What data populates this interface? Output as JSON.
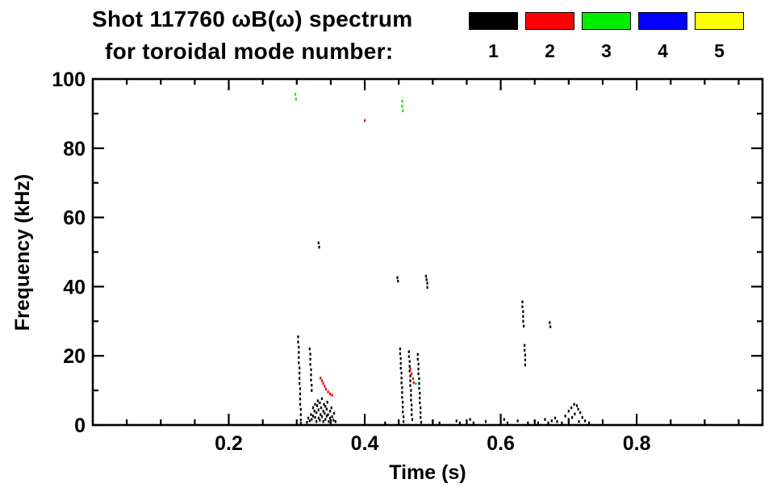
{
  "title": {
    "line1": "Shot 117760 ωB(ω) spectrum",
    "line2": "for toroidal mode number:"
  },
  "legend": {
    "position": "top-right",
    "entries": [
      {
        "label": "1",
        "color": "#000000"
      },
      {
        "label": "2",
        "color": "#ff0000"
      },
      {
        "label": "3",
        "color": "#00ee00"
      },
      {
        "label": "4",
        "color": "#0000ff"
      },
      {
        "label": "5",
        "color": "#ffff00"
      }
    ]
  },
  "chart_data": {
    "type": "scatter",
    "title": "Shot 117760 ωB(ω) spectrum for toroidal mode number:",
    "xlabel": "Time (s)",
    "ylabel": "Frequency (kHz)",
    "xlim": [
      0,
      0.985
    ],
    "ylim": [
      0,
      100
    ],
    "xticks": [
      0.2,
      0.4,
      0.6,
      0.8
    ],
    "yticks": [
      0,
      20,
      40,
      60,
      80,
      100
    ],
    "xminor_step": 0.05,
    "yminor_step": 10,
    "grid": false,
    "background": "#ffffff",
    "series": [
      {
        "name": "mode 1",
        "color": "#000000",
        "points": [
          [
            0.302,
            25.5
          ],
          [
            0.302,
            24
          ],
          [
            0.303,
            22.5
          ],
          [
            0.303,
            21
          ],
          [
            0.303,
            19.5
          ],
          [
            0.303,
            18
          ],
          [
            0.304,
            16.5
          ],
          [
            0.304,
            15
          ],
          [
            0.304,
            13.5
          ],
          [
            0.304,
            12
          ],
          [
            0.305,
            10.5
          ],
          [
            0.305,
            9
          ],
          [
            0.305,
            7.5
          ],
          [
            0.305,
            6
          ],
          [
            0.306,
            4.5
          ],
          [
            0.306,
            3
          ],
          [
            0.306,
            1.5
          ],
          [
            0.306,
            0.5
          ],
          [
            0.319,
            22
          ],
          [
            0.32,
            20.5
          ],
          [
            0.32,
            19
          ],
          [
            0.32,
            17.5
          ],
          [
            0.321,
            16
          ],
          [
            0.321,
            14.5
          ],
          [
            0.321,
            13
          ],
          [
            0.322,
            11.5
          ],
          [
            0.322,
            10
          ],
          [
            0.315,
            0.8
          ],
          [
            0.317,
            2
          ],
          [
            0.319,
            1.2
          ],
          [
            0.321,
            3
          ],
          [
            0.322,
            1.6
          ],
          [
            0.324,
            2.6
          ],
          [
            0.324,
            5
          ],
          [
            0.326,
            4
          ],
          [
            0.327,
            6
          ],
          [
            0.327,
            2.2
          ],
          [
            0.329,
            1
          ],
          [
            0.329,
            3.6
          ],
          [
            0.33,
            5.6
          ],
          [
            0.331,
            7
          ],
          [
            0.332,
            2
          ],
          [
            0.332,
            4.4
          ],
          [
            0.334,
            6.4
          ],
          [
            0.334,
            1.4
          ],
          [
            0.335,
            3
          ],
          [
            0.336,
            5
          ],
          [
            0.337,
            7.6
          ],
          [
            0.337,
            2.4
          ],
          [
            0.339,
            4
          ],
          [
            0.339,
            1
          ],
          [
            0.34,
            6
          ],
          [
            0.341,
            3.4
          ],
          [
            0.342,
            5.4
          ],
          [
            0.342,
            1.6
          ],
          [
            0.344,
            2.6
          ],
          [
            0.344,
            4.6
          ],
          [
            0.345,
            6.6
          ],
          [
            0.346,
            3
          ],
          [
            0.347,
            1
          ],
          [
            0.349,
            2
          ],
          [
            0.349,
            4
          ],
          [
            0.351,
            5
          ],
          [
            0.352,
            2.4
          ],
          [
            0.354,
            1.4
          ],
          [
            0.355,
            3.4
          ],
          [
            0.357,
            1
          ],
          [
            0.332,
            52.6
          ],
          [
            0.333,
            51.4
          ],
          [
            0.452,
            22
          ],
          [
            0.452,
            20.6
          ],
          [
            0.453,
            19.2
          ],
          [
            0.453,
            17.8
          ],
          [
            0.453,
            16.4
          ],
          [
            0.454,
            15
          ],
          [
            0.454,
            13.6
          ],
          [
            0.454,
            12.2
          ],
          [
            0.455,
            10.8
          ],
          [
            0.455,
            9.4
          ],
          [
            0.455,
            8
          ],
          [
            0.456,
            6.6
          ],
          [
            0.456,
            5.2
          ],
          [
            0.456,
            3.8
          ],
          [
            0.457,
            2.4
          ],
          [
            0.457,
            1
          ],
          [
            0.465,
            21.2
          ],
          [
            0.465,
            19.8
          ],
          [
            0.466,
            18.4
          ],
          [
            0.466,
            17
          ],
          [
            0.466,
            15.6
          ],
          [
            0.467,
            14.2
          ],
          [
            0.467,
            12.8
          ],
          [
            0.467,
            11.4
          ],
          [
            0.468,
            10
          ],
          [
            0.468,
            8.6
          ],
          [
            0.468,
            7.2
          ],
          [
            0.469,
            5.8
          ],
          [
            0.469,
            4.4
          ],
          [
            0.469,
            3
          ],
          [
            0.47,
            1.6
          ],
          [
            0.478,
            20.4
          ],
          [
            0.478,
            19
          ],
          [
            0.479,
            17.6
          ],
          [
            0.479,
            16.2
          ],
          [
            0.479,
            14.8
          ],
          [
            0.48,
            13.4
          ],
          [
            0.48,
            12
          ],
          [
            0.48,
            10.6
          ],
          [
            0.481,
            9.2
          ],
          [
            0.481,
            7.8
          ],
          [
            0.481,
            6.4
          ],
          [
            0.482,
            5
          ],
          [
            0.482,
            3.6
          ],
          [
            0.482,
            2.2
          ],
          [
            0.483,
            0.8
          ],
          [
            0.448,
            42.6
          ],
          [
            0.449,
            41.6
          ],
          [
            0.49,
            43
          ],
          [
            0.491,
            42
          ],
          [
            0.492,
            41
          ],
          [
            0.492,
            39.8
          ],
          [
            0.632,
            35.6
          ],
          [
            0.632,
            34.2
          ],
          [
            0.633,
            32.8
          ],
          [
            0.633,
            31.4
          ],
          [
            0.633,
            30
          ],
          [
            0.634,
            28.6
          ],
          [
            0.635,
            23
          ],
          [
            0.635,
            21.6
          ],
          [
            0.636,
            20.2
          ],
          [
            0.636,
            18.8
          ],
          [
            0.636,
            17.4
          ],
          [
            0.672,
            29.6
          ],
          [
            0.673,
            28.4
          ],
          [
            0.43,
            0.6
          ],
          [
            0.5,
            1
          ],
          [
            0.51,
            0.6
          ],
          [
            0.535,
            1.2
          ],
          [
            0.54,
            0.6
          ],
          [
            0.555,
            1.6
          ],
          [
            0.56,
            0.6
          ],
          [
            0.578,
            1
          ],
          [
            0.6,
            0.6
          ],
          [
            0.605,
            1.6
          ],
          [
            0.61,
            0.6
          ],
          [
            0.625,
            1.2
          ],
          [
            0.64,
            0.6
          ],
          [
            0.65,
            1
          ],
          [
            0.655,
            0.6
          ],
          [
            0.665,
            1.6
          ],
          [
            0.67,
            0.6
          ],
          [
            0.675,
            1.2
          ],
          [
            0.68,
            2
          ],
          [
            0.683,
            1
          ],
          [
            0.69,
            0.6
          ],
          [
            0.695,
            2.6
          ],
          [
            0.7,
            1.6
          ],
          [
            0.7,
            4
          ],
          [
            0.704,
            5
          ],
          [
            0.705,
            2.2
          ],
          [
            0.708,
            6
          ],
          [
            0.709,
            3.2
          ],
          [
            0.712,
            5.6
          ],
          [
            0.714,
            4.6
          ],
          [
            0.715,
            1
          ],
          [
            0.717,
            3.6
          ],
          [
            0.72,
            2.2
          ],
          [
            0.724,
            1.2
          ],
          [
            0.73,
            0.6
          ]
        ]
      },
      {
        "name": "mode 2",
        "color": "#ff0000",
        "points": [
          [
            0.335,
            13.6
          ],
          [
            0.337,
            12.8
          ],
          [
            0.339,
            12
          ],
          [
            0.341,
            11.2
          ],
          [
            0.343,
            10.4
          ],
          [
            0.346,
            9.6
          ],
          [
            0.349,
            9
          ],
          [
            0.352,
            8.6
          ],
          [
            0.4,
            88
          ],
          [
            0.467,
            16.2
          ],
          [
            0.469,
            14.8
          ],
          [
            0.471,
            13.4
          ],
          [
            0.472,
            12.2
          ]
        ]
      },
      {
        "name": "mode 3",
        "color": "#00ee00",
        "points": [
          [
            0.298,
            95.6
          ],
          [
            0.299,
            94.2
          ],
          [
            0.455,
            93.6
          ],
          [
            0.455,
            92.2
          ],
          [
            0.456,
            90.8
          ],
          [
            0.475,
            12
          ]
        ]
      },
      {
        "name": "mode 4",
        "color": "#0000ff",
        "points": []
      },
      {
        "name": "mode 5",
        "color": "#ffff00",
        "points": []
      }
    ]
  }
}
